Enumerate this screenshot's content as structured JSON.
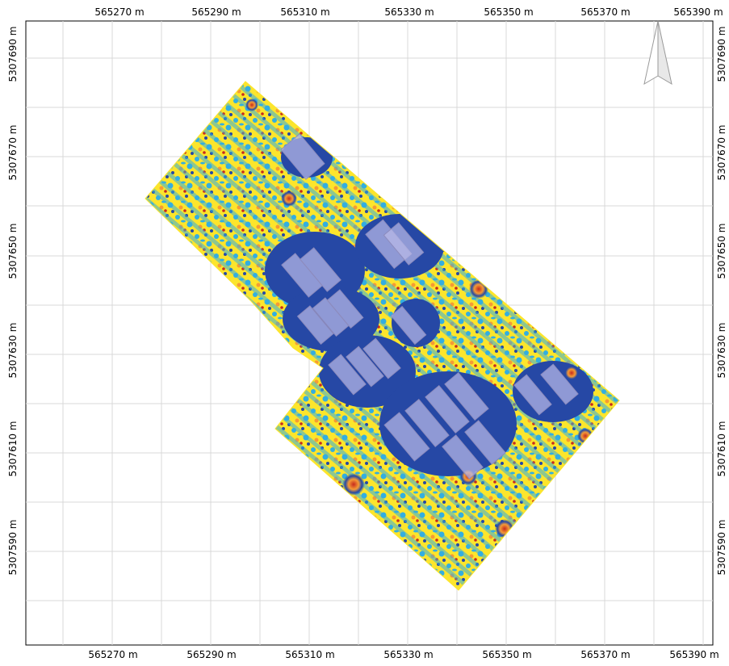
{
  "map": {
    "x_ticks": [
      "565270 m",
      "565290 m",
      "565310 m",
      "565330 m",
      "565350 m",
      "565370 m",
      "565390 m"
    ],
    "y_ticks": [
      "5307690 m",
      "5307670 m",
      "5307650 m",
      "5307630 m",
      "5307610 m",
      "5307590 m"
    ],
    "grid": true,
    "north_arrow": "north-arrow-icon",
    "colors": {
      "dark_blue": "#2648a5",
      "light_blue": "#33aee0",
      "yellow": "#fce52c",
      "orange": "#f59a35",
      "red": "#c62a1e",
      "building_overlay": "#b9b8e8",
      "grid": "#d9d9d9"
    }
  }
}
